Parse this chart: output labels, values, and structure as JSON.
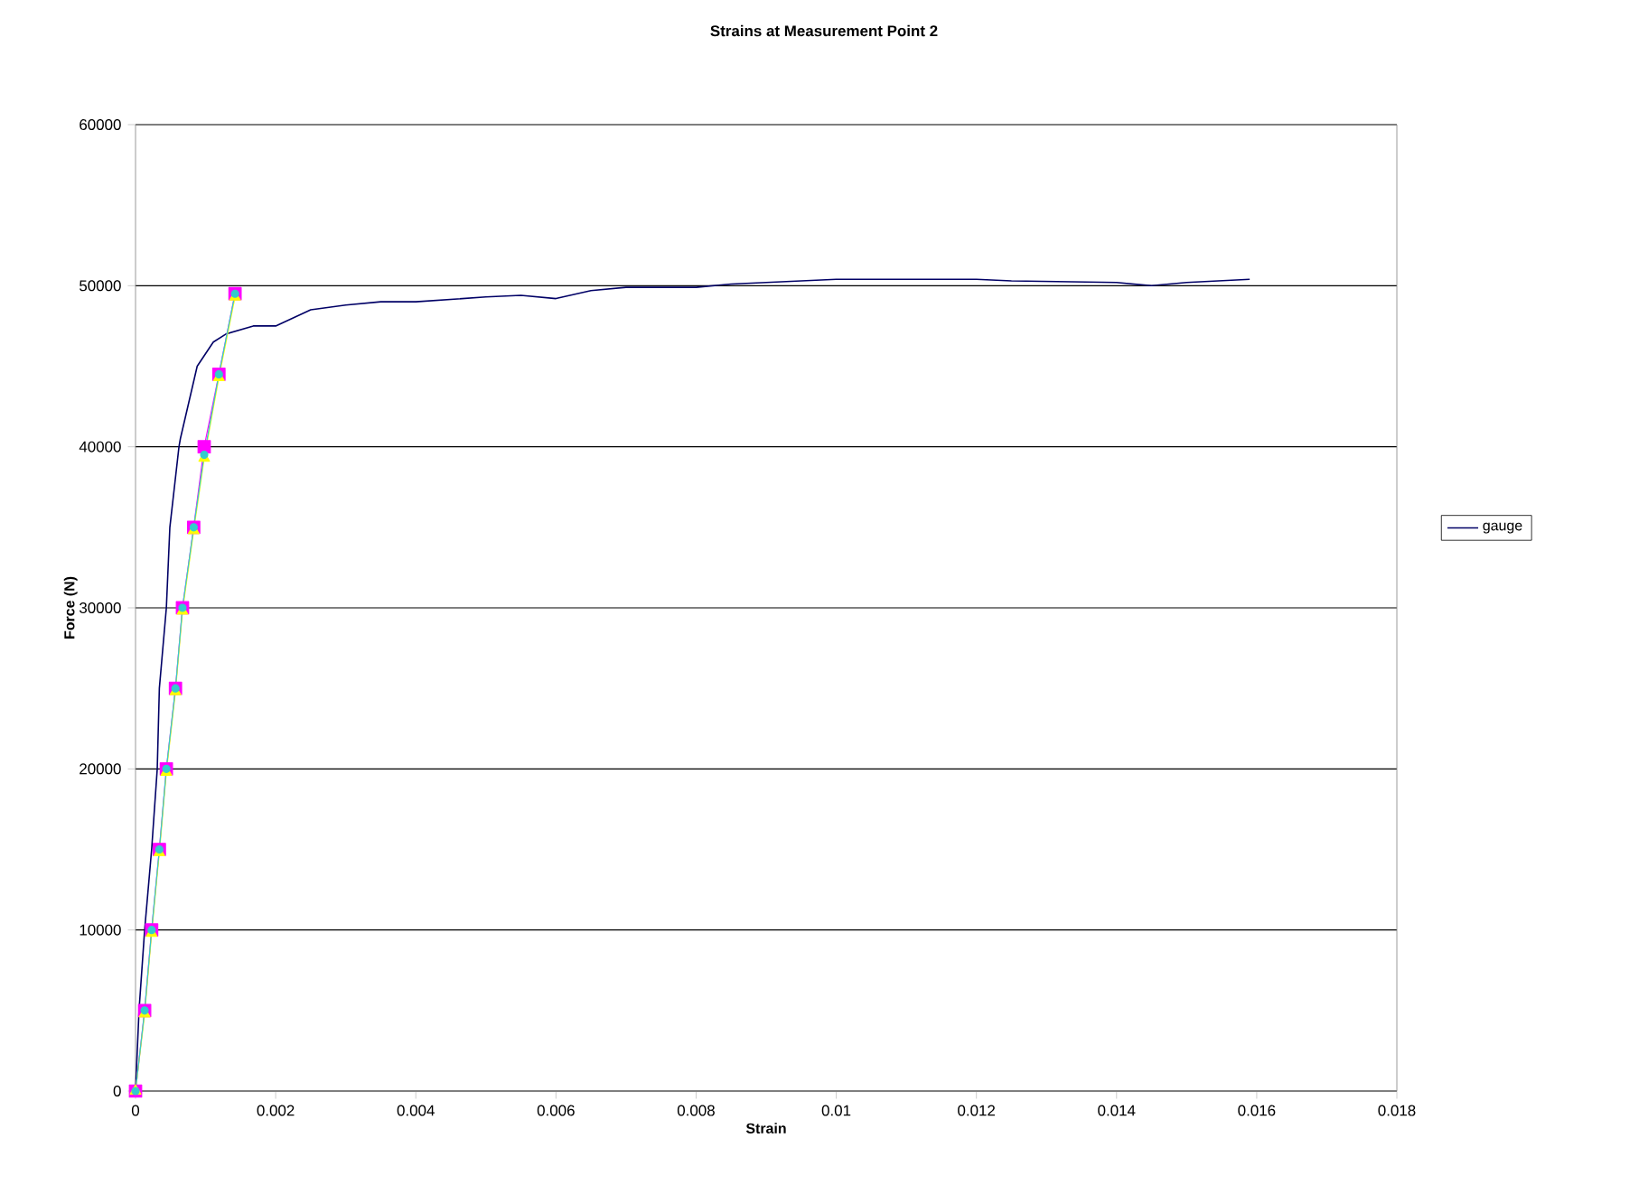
{
  "chart_data": {
    "type": "line",
    "title": "Strains at Measurement Point 2",
    "xlabel": "Strain",
    "ylabel": "Force (N)",
    "xlim": [
      0,
      0.018
    ],
    "xticks": [
      0,
      0.002,
      0.004,
      0.006,
      0.008,
      0.01,
      0.012,
      0.014,
      0.016,
      0.018
    ],
    "ylim": [
      0,
      60000
    ],
    "yticks": [
      0,
      10000,
      20000,
      30000,
      40000,
      50000,
      60000
    ],
    "grid": "y",
    "legend": "right",
    "series": [
      {
        "name": "gauge",
        "color": "#000066",
        "marker": "none",
        "x": [
          0,
          5e-05,
          0.00013,
          0.00023,
          0.00031,
          0.00034,
          0.00044,
          0.00049,
          0.00062,
          0.00064,
          0.00088,
          0.00111,
          0.00129,
          0.00168,
          0.002,
          0.0025,
          0.003,
          0.0035,
          0.004,
          0.005,
          0.0055,
          0.006,
          0.0065,
          0.007,
          0.008,
          0.0085,
          0.009,
          0.01,
          0.012,
          0.0125,
          0.014,
          0.0145,
          0.015,
          0.0159
        ],
        "values": [
          0,
          5000,
          10000,
          15000,
          20000,
          25000,
          30000,
          35000,
          40000,
          40500,
          45000,
          46500,
          47000,
          47500,
          47500,
          48500,
          48800,
          49000,
          49000,
          49300,
          49400,
          49200,
          49700,
          49900,
          49900,
          50100,
          50200,
          50400,
          50400,
          50300,
          50200,
          50000,
          50200,
          50400
        ]
      },
      {
        "color": "#ff00ff",
        "marker": "square",
        "x": [
          0,
          0.00013,
          0.00023,
          0.00034,
          0.00044,
          0.00057,
          0.00067,
          0.00083,
          0.00098,
          0.00119,
          0.00142
        ],
        "values": [
          0,
          5000,
          10000,
          15000,
          20000,
          25000,
          30000,
          35000,
          40000,
          44500,
          49500
        ]
      },
      {
        "color": "#ffff00",
        "marker": "triangle",
        "x": [
          0,
          0.00013,
          0.00023,
          0.00034,
          0.00044,
          0.00057,
          0.00067,
          0.00083,
          0.00098,
          0.00119,
          0.00142
        ],
        "values": [
          0,
          4800,
          9800,
          14800,
          19800,
          24800,
          29800,
          34800,
          39300,
          44300,
          49300
        ]
      },
      {
        "color": "#33cccc",
        "marker": "circle",
        "x": [
          0,
          0.00013,
          0.00023,
          0.00034,
          0.00044,
          0.00057,
          0.00067,
          0.00083,
          0.00098,
          0.00119,
          0.00142
        ],
        "values": [
          0,
          5000,
          10000,
          15000,
          20000,
          25000,
          30000,
          35000,
          39500,
          44500,
          49500
        ]
      }
    ]
  }
}
